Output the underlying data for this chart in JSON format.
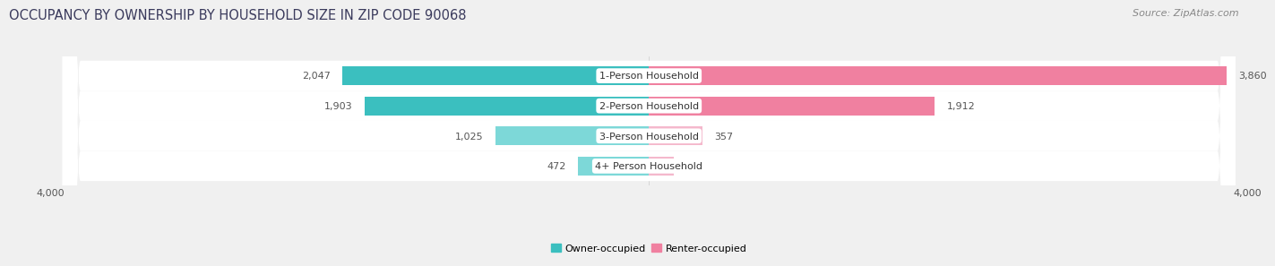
{
  "title": "OCCUPANCY BY OWNERSHIP BY HOUSEHOLD SIZE IN ZIP CODE 90068",
  "source": "Source: ZipAtlas.com",
  "categories": [
    "1-Person Household",
    "2-Person Household",
    "3-Person Household",
    "4+ Person Household"
  ],
  "owner_values": [
    2047,
    1903,
    1025,
    472
  ],
  "renter_values": [
    3860,
    1912,
    357,
    164
  ],
  "owner_color": "#3BBFBF",
  "renter_color": "#F080A0",
  "owner_color_light": "#7DD8D8",
  "renter_color_light": "#F4B8CC",
  "background_color": "#f0f0f0",
  "bar_background": "#ffffff",
  "row_sep_color": "#e0e0e0",
  "xlim": 4000,
  "x_tick_labels": [
    "4,000",
    "4,000"
  ],
  "title_fontsize": 10.5,
  "source_fontsize": 8,
  "label_fontsize": 8,
  "cat_fontsize": 8,
  "bar_height": 0.62,
  "title_color": "#3a3a5c",
  "source_color": "#888888",
  "value_color": "#555555"
}
